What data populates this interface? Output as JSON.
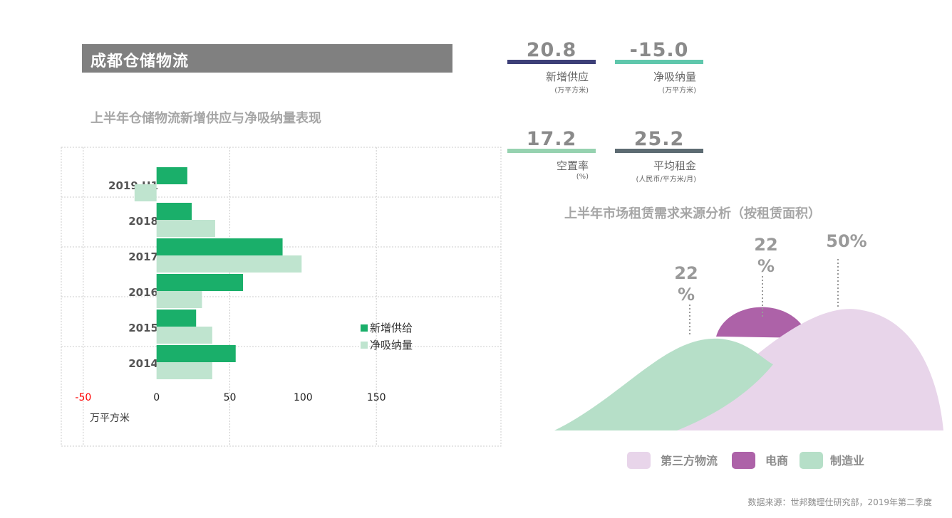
{
  "header": {
    "title": "成都仓储物流"
  },
  "stats": [
    {
      "value": "20.8",
      "label": "新增供应",
      "unit": "(万平方米)",
      "color": "#3d3f78"
    },
    {
      "value": "-15.0",
      "label": "净吸纳量",
      "unit": "(万平方米)",
      "color": "#5fc7ac"
    },
    {
      "value": "17.2",
      "label": "空置率",
      "unit": "(%)",
      "color": "#96d2b0"
    },
    {
      "value": "25.2",
      "label": "平均租金",
      "unit": "(人民币/平方米/月)",
      "color": "#5d6b72"
    }
  ],
  "chart_data": [
    {
      "type": "bar",
      "orientation": "horizontal",
      "title": "上半年仓储物流新增供应与净吸纳量表现",
      "categories": [
        "2019 H1",
        "2018",
        "2017",
        "2016",
        "2015",
        "2014"
      ],
      "series": [
        {
          "name": "新增供给",
          "color": "#1aaf6a",
          "values": [
            21,
            24,
            86,
            59,
            27,
            54
          ]
        },
        {
          "name": "净吸纳量",
          "color": "#bfe4cf",
          "values": [
            -15,
            40,
            99,
            31,
            38,
            38
          ]
        }
      ],
      "xticks": [
        "-50",
        "0",
        "50",
        "100",
        "150"
      ],
      "xtick_values": [
        -50,
        0,
        50,
        100,
        150
      ],
      "xlim": [
        -65,
        235
      ],
      "xlabel": "万平方米",
      "negative_tick_color": "#ff0000",
      "grid": true,
      "legend_position": "right"
    },
    {
      "type": "area",
      "title": "上半年市场租赁需求来源分析（按租赁面积）",
      "series": [
        {
          "name": "第三方物流",
          "value": 50,
          "label": "50%",
          "color": "#e8d5ea"
        },
        {
          "name": "电商",
          "value": 22,
          "label": "22%",
          "color": "#ad62a8"
        },
        {
          "name": "制造业",
          "value": 22,
          "label": "22%",
          "color": "#b6dfc8"
        }
      ],
      "legend_position": "bottom"
    }
  ],
  "footer": {
    "source": "数据来源：世邦魏理仕研究部，2019年第二季度"
  }
}
